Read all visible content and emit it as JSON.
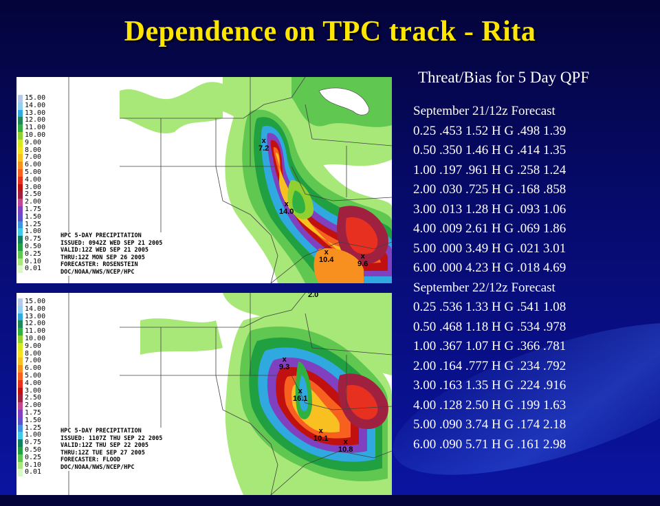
{
  "slide": {
    "title": "Dependence on TPC track - Rita",
    "subtitle": "Threat/Bias for 5 Day QPF",
    "stats": [
      "September 21/12z Forecast",
      "0.25 .453 1.52 H G .498 1.39",
      "0.50 .350 1.46 H G .414 1.35",
      "1.00 .197 .961 H G .258 1.24",
      "2.00 .030 .725 H G .168 .858",
      "3.00 .013 1.28 H G .093 1.06",
      "4.00 .009 2.61 H G .069 1.86",
      "5.00 .000 3.49 H G .021 3.01",
      "6.00 .000 4.23 H G .018 4.69",
      "September 22/12z Forecast",
      "0.25 .536 1.33 H G .541 1.08",
      "0.50 .468 1.18 H G .534 .978",
      "1.00 .367 1.07 H G .366 .781",
      "2.00 .164 .777 H G .234 .792",
      "3.00 .163 1.35 H G .224 .916",
      "4.00 .128 2.50 H G .199 1.63",
      "5.00 .090 3.74 H G .174 2.18",
      "6.00 .090 5.71 H G .161 2.98"
    ]
  },
  "legend": [
    {
      "label": "15.00",
      "color": "#b8c8e8"
    },
    {
      "label": "14.00",
      "color": "#90d0f0"
    },
    {
      "label": "13.00",
      "color": "#30a8e0"
    },
    {
      "label": "12.00",
      "color": "#208858"
    },
    {
      "label": "11.00",
      "color": "#30b040"
    },
    {
      "label": "10.00",
      "color": "#90d030"
    },
    {
      "label": "9.00",
      "color": "#d8e820"
    },
    {
      "label": "8.00",
      "color": "#f8e020"
    },
    {
      "label": "7.00",
      "color": "#f8c020"
    },
    {
      "label": "6.00",
      "color": "#f89020"
    },
    {
      "label": "5.00",
      "color": "#f86020"
    },
    {
      "label": "4.00",
      "color": "#e83020"
    },
    {
      "label": "3.00",
      "color": "#c01010"
    },
    {
      "label": "2.50",
      "color": "#a02040"
    },
    {
      "label": "2.00",
      "color": "#c04890"
    },
    {
      "label": "1.75",
      "color": "#8040c0"
    },
    {
      "label": "1.50",
      "color": "#6050d0"
    },
    {
      "label": "1.25",
      "color": "#4090e0"
    },
    {
      "label": "1.00",
      "color": "#40c8e8"
    },
    {
      "label": "0.75",
      "color": "#108060"
    },
    {
      "label": "0.50",
      "color": "#20a040"
    },
    {
      "label": "0.25",
      "color": "#60c850"
    },
    {
      "label": "0.10",
      "color": "#a8e878"
    },
    {
      "label": "0.01",
      "color": "#d8f8c8"
    }
  ],
  "map_top": {
    "caption": [
      "HPC 5-DAY PRECIPITATION",
      "ISSUED: 0942Z WED SEP 21 2005",
      "VALID:12Z WED SEP 21 2005",
      "THRU:12Z MON SEP 26 2005",
      "FORECASTER: ROSENSTEIN",
      "DOC/NOAA/NWS/NCEP/HPC"
    ],
    "markers": [
      "7.2",
      "14.0",
      "10.4",
      "9.6"
    ]
  },
  "map_bottom": {
    "caption": [
      "HPC 5-DAY PRECIPITATION",
      "ISSUED: 1107Z THU SEP 22 2005",
      "VALID:12Z THU SEP 22 2005",
      "THRU:12Z TUE SEP 27 2005",
      "FORECASTER: FLOOD",
      "DOC/NOAA/NWS/NCEP/HPC"
    ],
    "markers": [
      "2.0",
      "9.3",
      "16.1",
      "10.1",
      "10.8"
    ]
  }
}
